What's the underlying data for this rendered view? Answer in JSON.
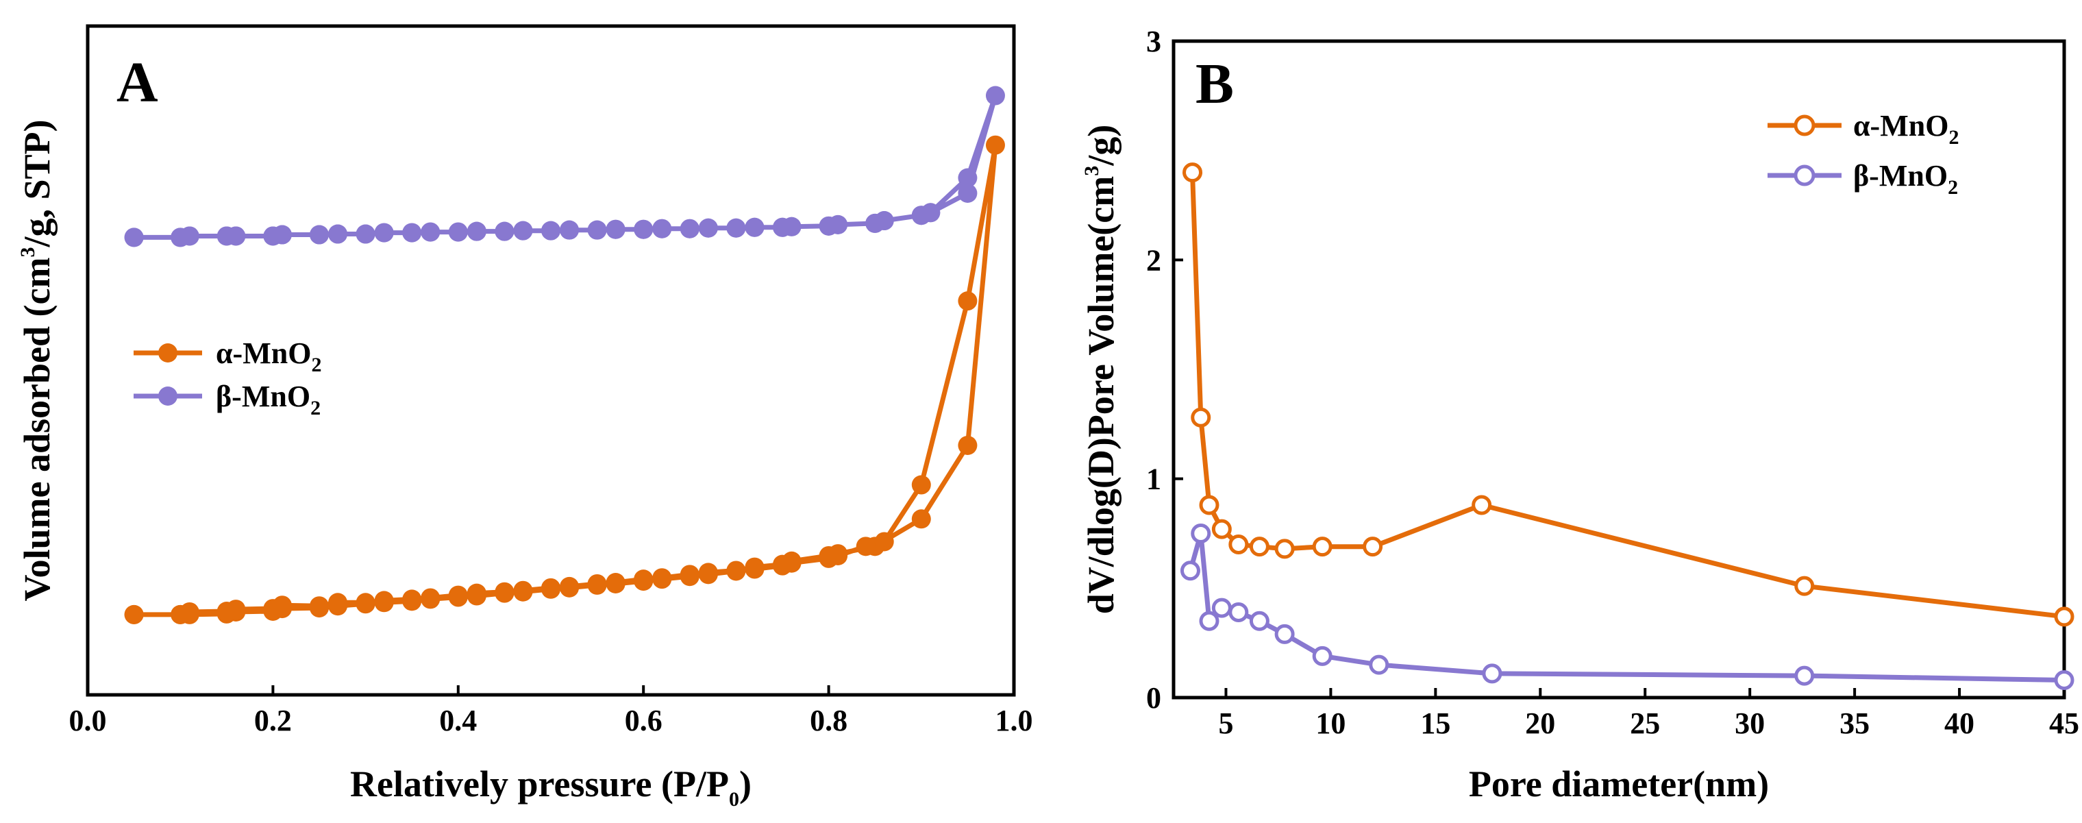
{
  "chart_data": [
    {
      "panel": "A",
      "type": "line",
      "xlabel": "Relatively pressure (P/P",
      "xlabel_sub": "0",
      "xlabel_tail": ")",
      "ylabel_pre": "Volume adsorbed (cm",
      "ylabel_sup": "3",
      "ylabel_post": "/g, STP)",
      "xlim": [
        0.0,
        1.0
      ],
      "ylim": [
        0,
        100
      ],
      "xticks": [
        "0.0",
        "0.2",
        "0.4",
        "0.6",
        "0.8",
        "1.0"
      ],
      "legend": [
        {
          "label": "α-MnO",
          "sub": "2"
        },
        {
          "label": "β-MnO",
          "sub": "2"
        }
      ],
      "legend_position": "middle-left",
      "series": [
        {
          "name": "α-MnO2",
          "color": "#e46c0a",
          "marker": "filled",
          "x": [
            0.05,
            0.1,
            0.11,
            0.15,
            0.16,
            0.2,
            0.21,
            0.25,
            0.27,
            0.3,
            0.32,
            0.35,
            0.37,
            0.4,
            0.42,
            0.45,
            0.47,
            0.5,
            0.52,
            0.55,
            0.57,
            0.6,
            0.62,
            0.65,
            0.67,
            0.7,
            0.72,
            0.75,
            0.76,
            0.8,
            0.81,
            0.85,
            0.9,
            0.95,
            0.98,
            0.95,
            0.9,
            0.86,
            0.84,
            0.81,
            0.8,
            0.76,
            0.75,
            0.72,
            0.7,
            0.67,
            0.65,
            0.62,
            0.6,
            0.57,
            0.55,
            0.52,
            0.5,
            0.47,
            0.45,
            0.42,
            0.4,
            0.37,
            0.35,
            0.32,
            0.3,
            0.27,
            0.25,
            0.21,
            0.2,
            0.16,
            0.15,
            0.11,
            0.1,
            0.05
          ],
          "y": [
            12.0,
            12.0,
            12.4,
            12.5,
            12.8,
            12.9,
            13.4,
            13.3,
            13.8,
            13.8,
            14.1,
            14.3,
            14.5,
            14.9,
            15.2,
            15.4,
            15.6,
            16.0,
            16.2,
            16.6,
            16.8,
            17.3,
            17.5,
            18.0,
            18.3,
            18.6,
            19.1,
            19.5,
            20.0,
            20.8,
            21.1,
            22.2,
            26.3,
            37.3,
            82.2,
            58.9,
            31.4,
            22.9,
            22.2,
            20.8,
            20.4,
            19.7,
            19.3,
            18.8,
            18.5,
            18.0,
            17.7,
            17.3,
            17.0,
            16.6,
            16.4,
            16.0,
            15.8,
            15.4,
            15.2,
            14.8,
            14.6,
            14.3,
            14.0,
            13.8,
            13.6,
            13.3,
            13.0,
            12.9,
            12.5,
            12.4,
            12.1,
            12.0,
            12.0,
            12.0
          ]
        },
        {
          "name": "β-MnO2",
          "color": "#8878d0",
          "marker": "filled",
          "x": [
            0.05,
            0.1,
            0.11,
            0.15,
            0.16,
            0.2,
            0.21,
            0.25,
            0.27,
            0.3,
            0.32,
            0.35,
            0.37,
            0.4,
            0.42,
            0.45,
            0.47,
            0.5,
            0.52,
            0.55,
            0.57,
            0.6,
            0.62,
            0.65,
            0.67,
            0.7,
            0.72,
            0.75,
            0.76,
            0.8,
            0.81,
            0.85,
            0.86,
            0.9,
            0.91,
            0.95,
            0.98,
            0.95,
            0.91,
            0.9,
            0.86,
            0.85,
            0.81,
            0.8,
            0.76,
            0.75,
            0.72,
            0.7,
            0.67,
            0.65,
            0.62,
            0.6,
            0.57,
            0.55,
            0.52,
            0.5,
            0.47,
            0.45,
            0.42,
            0.4,
            0.37,
            0.35,
            0.32,
            0.3,
            0.27,
            0.25,
            0.21,
            0.2,
            0.16,
            0.15,
            0.11,
            0.1,
            0.05
          ],
          "y": [
            68.4,
            68.4,
            68.6,
            68.6,
            68.6,
            68.6,
            68.8,
            68.8,
            68.9,
            68.9,
            69.1,
            69.1,
            69.2,
            69.2,
            69.3,
            69.3,
            69.4,
            69.4,
            69.5,
            69.5,
            69.6,
            69.6,
            69.7,
            69.7,
            69.8,
            69.8,
            69.9,
            69.9,
            70.0,
            70.1,
            70.3,
            70.5,
            70.9,
            71.7,
            72.1,
            75.0,
            89.6,
            77.3,
            72.1,
            71.7,
            70.9,
            70.5,
            70.3,
            70.1,
            70.0,
            69.9,
            69.9,
            69.8,
            69.8,
            69.7,
            69.7,
            69.6,
            69.6,
            69.5,
            69.5,
            69.4,
            69.4,
            69.3,
            69.3,
            69.2,
            69.2,
            69.1,
            69.1,
            68.9,
            68.9,
            68.8,
            68.8,
            68.6,
            68.6,
            68.6,
            68.6,
            68.4,
            68.4
          ]
        }
      ]
    },
    {
      "panel": "B",
      "type": "line",
      "xlabel": "Pore diameter(nm)",
      "ylabel_pre": "dV/dlog(D)Pore Volume(cm",
      "ylabel_sup": "3",
      "ylabel_post": "/g)",
      "xlim": [
        2.5,
        45
      ],
      "ylim": [
        0,
        3
      ],
      "xticks": [
        5,
        10,
        15,
        20,
        25,
        30,
        35,
        40,
        45
      ],
      "yticks": [
        0,
        1,
        2,
        3
      ],
      "legend": [
        {
          "label": "α-MnO",
          "sub": "2"
        },
        {
          "label": "β-MnO",
          "sub": "2"
        }
      ],
      "legend_position": "top-right",
      "series": [
        {
          "name": "α-MnO2",
          "color": "#e46c0a",
          "marker": "hollow",
          "x": [
            3.4,
            3.8,
            4.2,
            4.8,
            5.6,
            6.6,
            7.8,
            9.6,
            12.0,
            17.2,
            32.6,
            45.0
          ],
          "y": [
            2.4,
            1.28,
            0.88,
            0.77,
            0.7,
            0.69,
            0.68,
            0.69,
            0.69,
            0.88,
            0.51,
            0.37
          ]
        },
        {
          "name": "β-MnO2",
          "color": "#8878d0",
          "marker": "hollow",
          "x": [
            3.3,
            3.8,
            4.2,
            4.8,
            5.6,
            6.6,
            7.8,
            9.6,
            12.3,
            17.7,
            32.6,
            45.0
          ],
          "y": [
            0.58,
            0.75,
            0.35,
            0.41,
            0.39,
            0.35,
            0.29,
            0.19,
            0.15,
            0.11,
            0.1,
            0.08
          ]
        }
      ]
    }
  ]
}
